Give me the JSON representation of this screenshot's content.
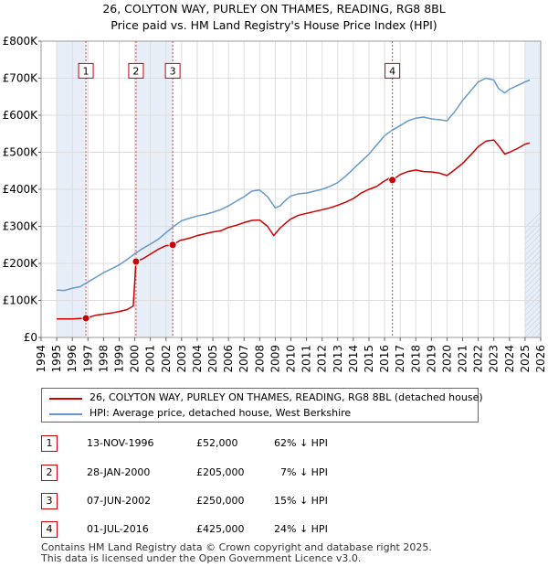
{
  "title_line1": "26, COLYTON WAY, PURLEY ON THAMES, READING, RG8 8BL",
  "title_line2": "Price paid vs. HM Land Registry's House Price Index (HPI)",
  "chart_data": {
    "type": "line",
    "title": "Price paid vs. HM Land Registry's House Price Index (HPI)",
    "xlabel": "",
    "ylabel": "",
    "xlim": [
      1994,
      2026
    ],
    "ylim": [
      0,
      800000
    ],
    "x_ticks": [
      "1994",
      "1995",
      "1996",
      "1997",
      "1998",
      "1999",
      "2000",
      "2001",
      "2002",
      "2003",
      "2004",
      "2005",
      "2006",
      "2007",
      "2008",
      "2009",
      "2010",
      "2011",
      "2012",
      "2013",
      "2014",
      "2015",
      "2016",
      "2017",
      "2018",
      "2019",
      "2020",
      "2021",
      "2022",
      "2023",
      "2024",
      "2025",
      "2026"
    ],
    "y_ticks": [
      {
        "value": 0,
        "label": "£0"
      },
      {
        "value": 100000,
        "label": "£100K"
      },
      {
        "value": 200000,
        "label": "£200K"
      },
      {
        "value": 300000,
        "label": "£300K"
      },
      {
        "value": 400000,
        "label": "£400K"
      },
      {
        "value": 500000,
        "label": "£500K"
      },
      {
        "value": 600000,
        "label": "£600K"
      },
      {
        "value": 700000,
        "label": "£700K"
      },
      {
        "value": 800000,
        "label": "£800K"
      }
    ],
    "grid": true,
    "series": [
      {
        "name": "26, COLYTON WAY, PURLEY ON THAMES, READING, RG8 8BL (detached house)",
        "color": "#cc0000",
        "x": [
          1995.0,
          1996.0,
          1996.87,
          1997.5,
          1998.0,
          1998.5,
          1999.0,
          1999.5,
          1999.9,
          2000.08,
          2000.5,
          2001.0,
          2001.5,
          2002.0,
          2002.43,
          2002.9,
          2003.5,
          2004.0,
          2004.5,
          2005.0,
          2005.5,
          2006.0,
          2006.5,
          2007.0,
          2007.5,
          2008.0,
          2008.5,
          2008.9,
          2009.3,
          2009.7,
          2010.0,
          2010.5,
          2011.0,
          2011.5,
          2012.0,
          2012.5,
          2013.0,
          2013.5,
          2014.0,
          2014.5,
          2015.0,
          2015.5,
          2015.9,
          2016.3,
          2016.5,
          2017.0,
          2017.5,
          2018.0,
          2018.5,
          2019.0,
          2019.5,
          2020.0,
          2020.5,
          2021.0,
          2021.5,
          2022.0,
          2022.5,
          2023.0,
          2023.3,
          2023.7,
          2024.0,
          2024.5,
          2025.0,
          2025.3
        ],
        "values": [
          50000,
          50000,
          52000,
          60000,
          63000,
          66000,
          70000,
          75000,
          85000,
          205000,
          212000,
          225000,
          238000,
          248000,
          250000,
          262000,
          268000,
          275000,
          280000,
          285000,
          288000,
          297000,
          303000,
          310000,
          316000,
          317000,
          300000,
          275000,
          295000,
          310000,
          320000,
          330000,
          335000,
          340000,
          345000,
          350000,
          357000,
          365000,
          375000,
          390000,
          400000,
          408000,
          420000,
          430000,
          425000,
          440000,
          448000,
          452000,
          448000,
          447000,
          444000,
          437000,
          453000,
          470000,
          492000,
          515000,
          530000,
          533000,
          518000,
          495000,
          500000,
          510000,
          522000,
          525000
        ]
      },
      {
        "name": "HPI: Average price, detached house, West Berkshire",
        "color": "#6699cc",
        "x": [
          1995.0,
          1995.5,
          1996.0,
          1996.5,
          1997.0,
          1997.5,
          1998.0,
          1998.5,
          1999.0,
          1999.5,
          2000.0,
          2000.5,
          2001.0,
          2001.5,
          2002.0,
          2002.5,
          2003.0,
          2003.5,
          2004.0,
          2004.5,
          2005.0,
          2005.5,
          2006.0,
          2006.5,
          2007.0,
          2007.5,
          2008.0,
          2008.5,
          2009.0,
          2009.3,
          2009.7,
          2010.0,
          2010.5,
          2011.0,
          2011.5,
          2012.0,
          2012.5,
          2013.0,
          2013.5,
          2014.0,
          2014.5,
          2015.0,
          2015.5,
          2016.0,
          2016.5,
          2017.0,
          2017.5,
          2018.0,
          2018.5,
          2019.0,
          2019.5,
          2020.0,
          2020.5,
          2021.0,
          2021.5,
          2022.0,
          2022.5,
          2023.0,
          2023.3,
          2023.7,
          2024.0,
          2024.5,
          2025.0,
          2025.3
        ],
        "values": [
          128000,
          127000,
          133000,
          137000,
          150000,
          162000,
          175000,
          185000,
          196000,
          210000,
          226000,
          240000,
          252000,
          265000,
          283000,
          300000,
          315000,
          322000,
          328000,
          332000,
          338000,
          345000,
          355000,
          368000,
          380000,
          395000,
          398000,
          380000,
          350000,
          355000,
          372000,
          382000,
          388000,
          390000,
          395000,
          400000,
          408000,
          418000,
          435000,
          455000,
          475000,
          495000,
          520000,
          545000,
          560000,
          572000,
          585000,
          592000,
          595000,
          590000,
          588000,
          585000,
          610000,
          640000,
          665000,
          690000,
          700000,
          695000,
          672000,
          660000,
          670000,
          680000,
          690000,
          695000
        ]
      }
    ],
    "sales": [
      {
        "id": "1",
        "x": 1996.87,
        "price": 52000
      },
      {
        "id": "2",
        "x": 2000.08,
        "price": 205000
      },
      {
        "id": "3",
        "x": 2002.43,
        "price": 250000
      },
      {
        "id": "4",
        "x": 2016.5,
        "price": 425000
      }
    ],
    "shaded_ranges": [
      [
        1995.0,
        1996.87
      ],
      [
        2000.08,
        2002.43
      ],
      [
        2025.0,
        2026.0
      ]
    ],
    "marker_label_value": 720000
  },
  "legend": {
    "property_label": "26, COLYTON WAY, PURLEY ON THAMES, READING, RG8 8BL (detached house)",
    "hpi_label": "HPI: Average price, detached house, West Berkshire"
  },
  "transactions": [
    {
      "num": "1",
      "date": "13-NOV-1996",
      "price": "£52,000",
      "hpi": "62% ↓ HPI"
    },
    {
      "num": "2",
      "date": "28-JAN-2000",
      "price": "£205,000",
      "hpi": "7% ↓ HPI"
    },
    {
      "num": "3",
      "date": "07-JUN-2002",
      "price": "£250,000",
      "hpi": "15% ↓ HPI"
    },
    {
      "num": "4",
      "date": "01-JUL-2016",
      "price": "£425,000",
      "hpi": "24% ↓ HPI"
    }
  ],
  "footer": {
    "line1": "Contains HM Land Registry data © Crown copyright and database right 2025.",
    "line2": "This data is licensed under the Open Government Licence v3.0."
  },
  "colors": {
    "property": "#cc0000",
    "hpi": "#6699cc",
    "shade": "#e8eef8",
    "grid": "#dddddd"
  }
}
